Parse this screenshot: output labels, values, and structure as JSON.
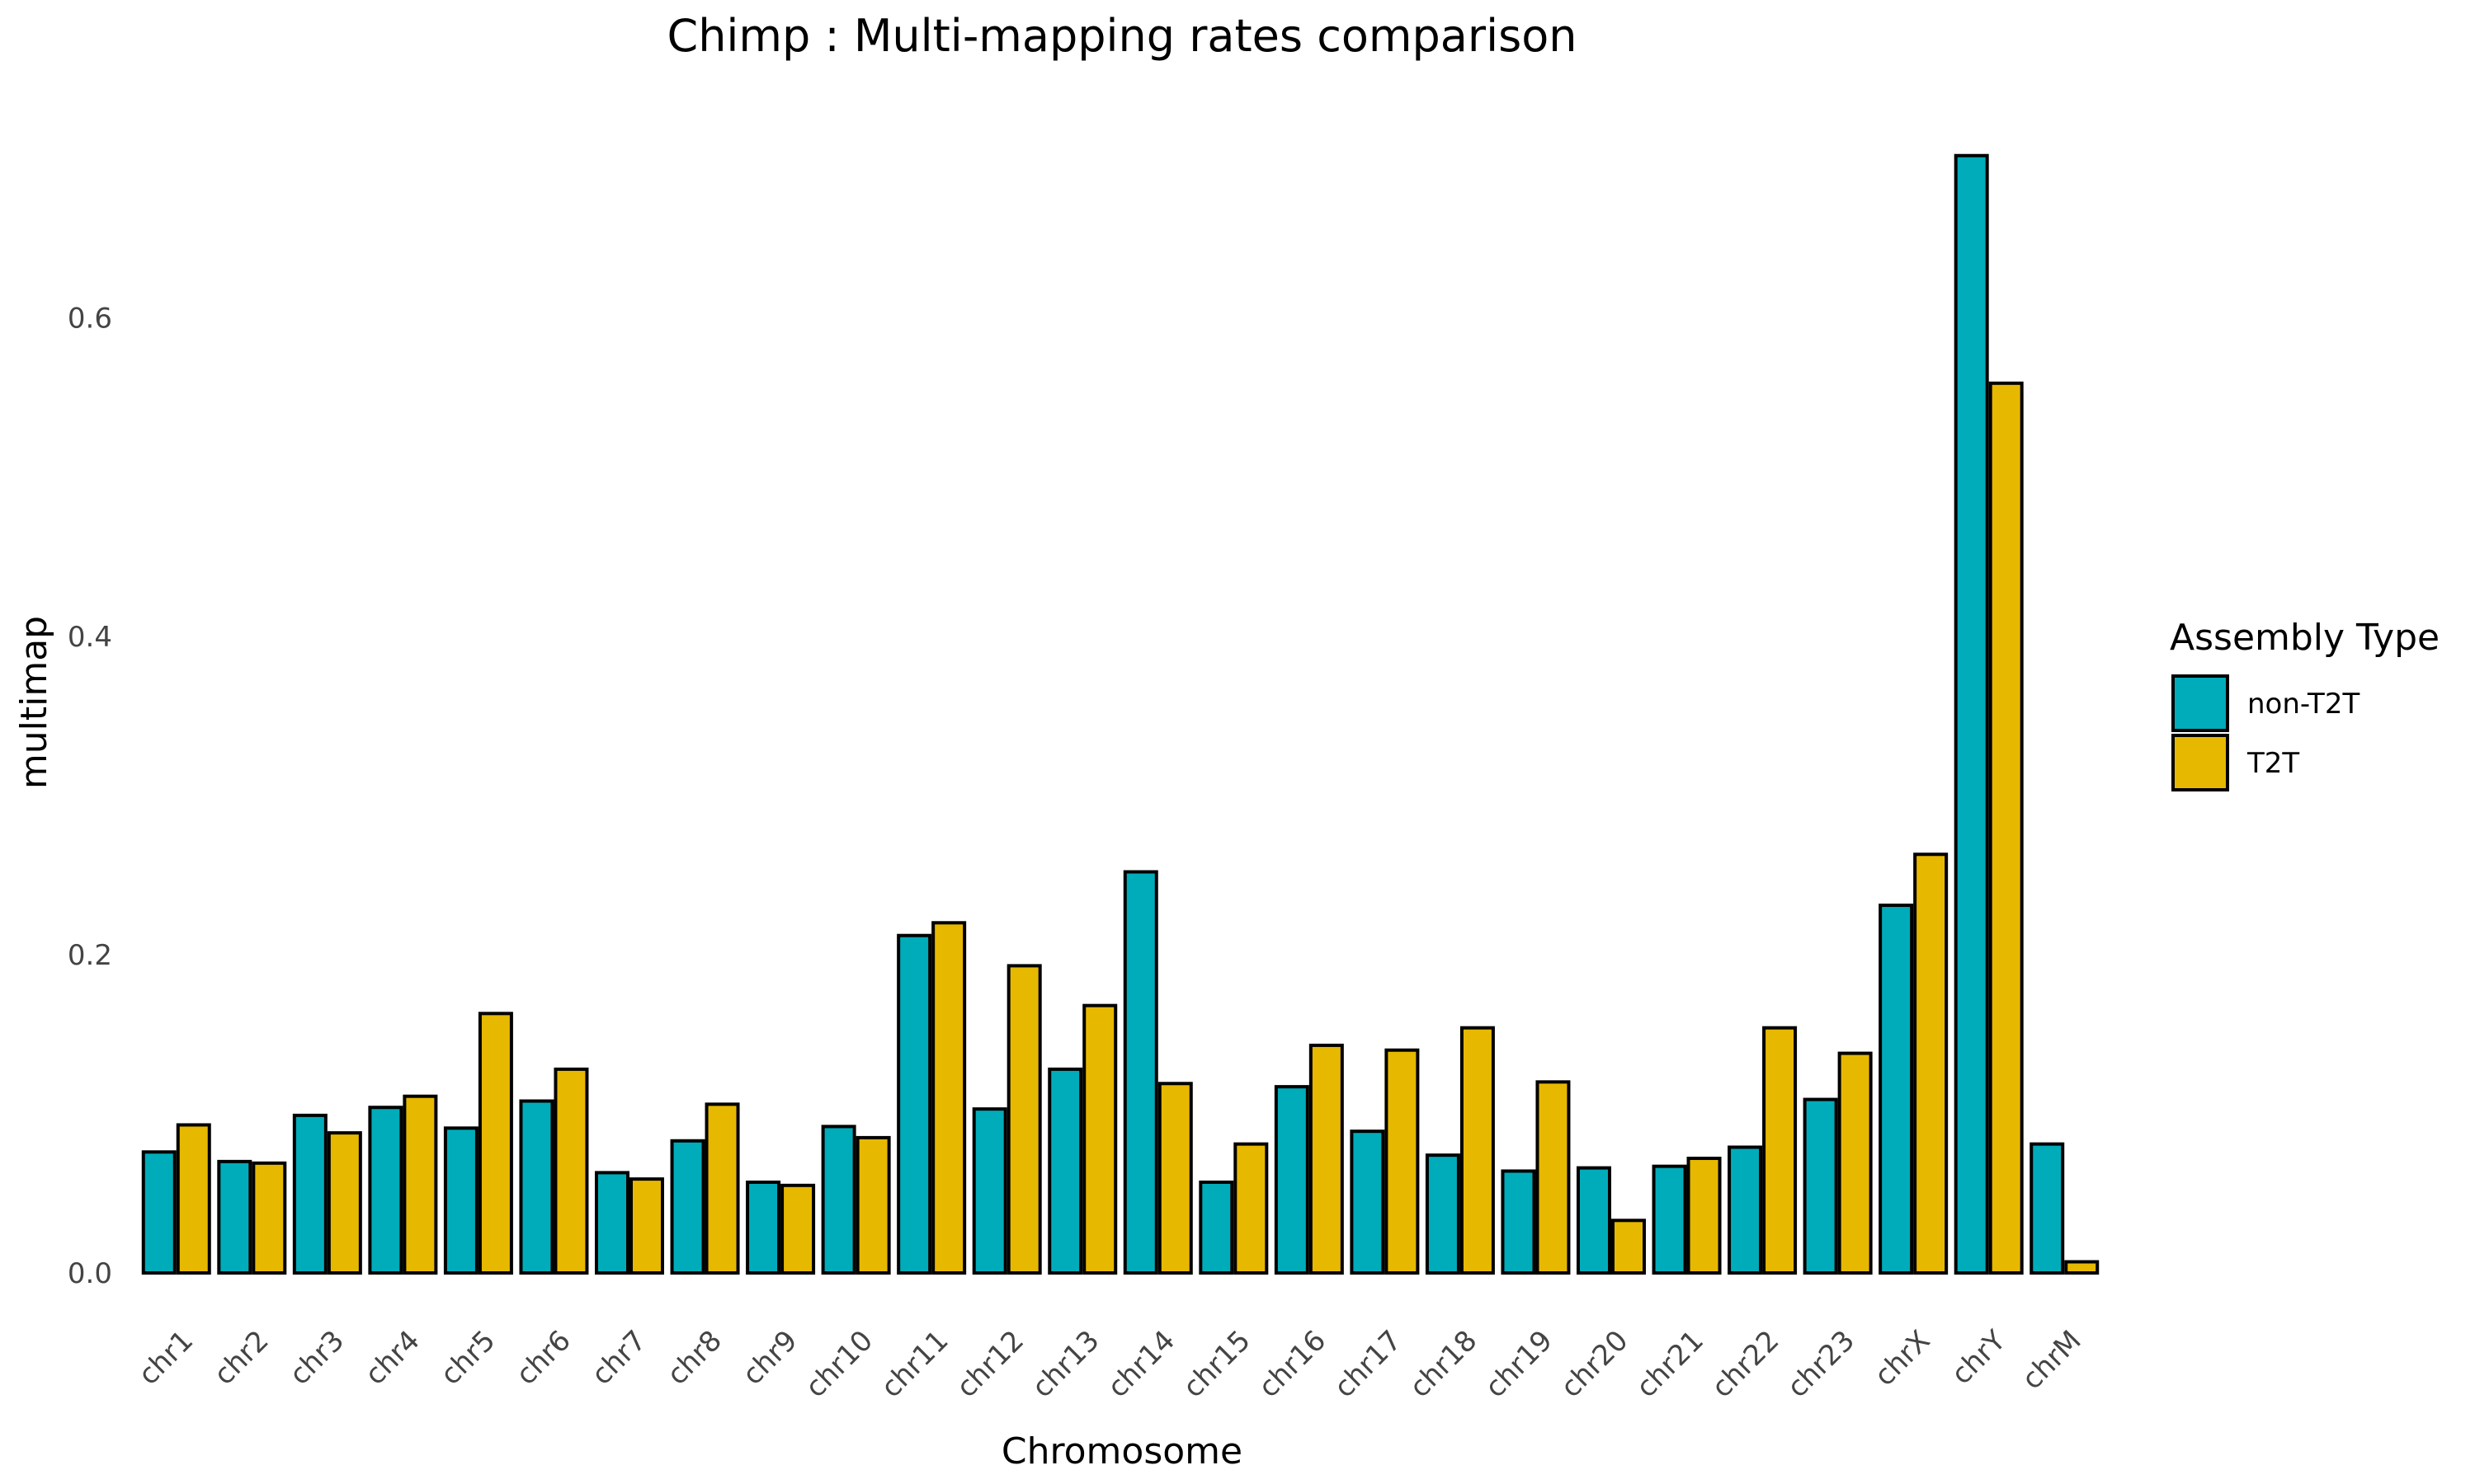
{
  "chart_data": {
    "type": "bar",
    "title": "Chimp : Multi-mapping rates comparison",
    "xlabel": "Chromosome",
    "ylabel": "multimap",
    "ylim": [
      0,
      0.72
    ],
    "yticks": [
      0.0,
      0.2,
      0.4,
      0.6
    ],
    "ytick_labels": [
      "0.0",
      "0.2",
      "0.4",
      "0.6"
    ],
    "grid": false,
    "legend_position": "right",
    "legend_title": "Assembly Type",
    "categories": [
      "chr1",
      "chr2",
      "chr3",
      "chr4",
      "chr5",
      "chr6",
      "chr7",
      "chr8",
      "chr9",
      "chr10",
      "chr11",
      "chr12",
      "chr13",
      "chr14",
      "chr15",
      "chr16",
      "chr17",
      "chr18",
      "chr19",
      "chr20",
      "chr21",
      "chr22",
      "chr23",
      "chrX",
      "chrY",
      "chrM"
    ],
    "series": [
      {
        "name": "non-T2T",
        "color": "#00ACBA",
        "values": [
          0.076,
          0.07,
          0.099,
          0.104,
          0.091,
          0.108,
          0.063,
          0.083,
          0.057,
          0.092,
          0.212,
          0.103,
          0.128,
          0.252,
          0.057,
          0.117,
          0.089,
          0.074,
          0.064,
          0.066,
          0.067,
          0.079,
          0.109,
          0.231,
          0.702,
          0.081
        ]
      },
      {
        "name": "T2T",
        "color": "#E7B800",
        "values": [
          0.093,
          0.069,
          0.088,
          0.111,
          0.163,
          0.128,
          0.059,
          0.106,
          0.055,
          0.085,
          0.22,
          0.193,
          0.168,
          0.119,
          0.081,
          0.143,
          0.14,
          0.154,
          0.12,
          0.033,
          0.072,
          0.154,
          0.138,
          0.263,
          0.559,
          0.007
        ]
      }
    ]
  }
}
